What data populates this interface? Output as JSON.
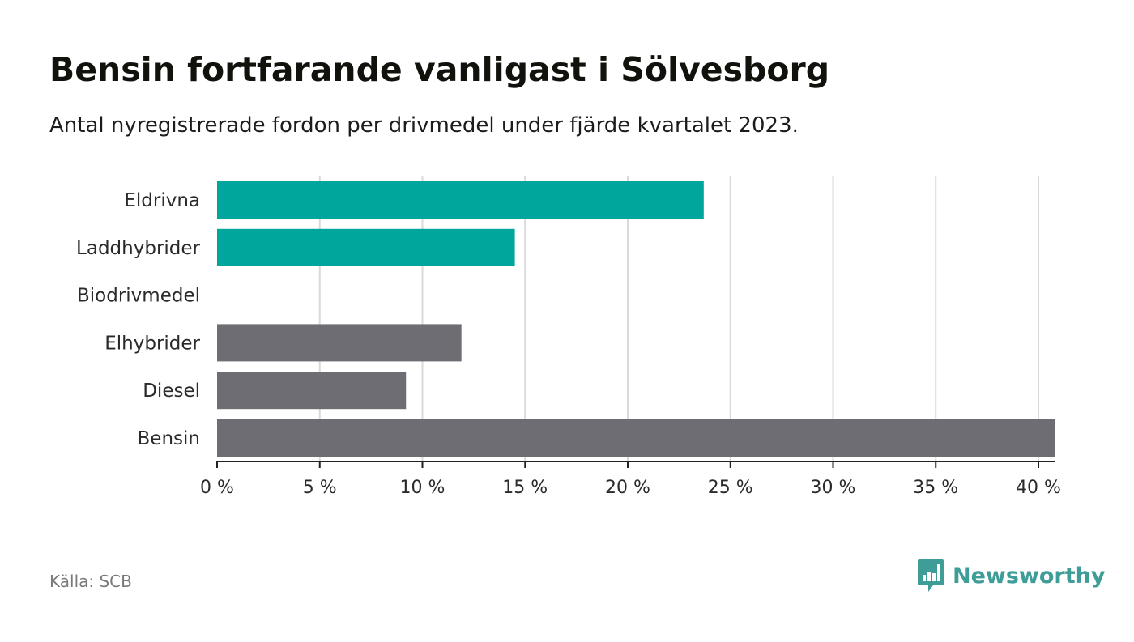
{
  "title": "Bensin fortfarande vanligast i Sölvesborg",
  "subtitle": "Antal nyregistrerade fordon per drivmedel under fjärde kvartalet 2023.",
  "source": "Källa: SCB",
  "brand": {
    "name": "Newsworthy",
    "icon": "newsworthy-logo-icon",
    "color": "#3e9e97"
  },
  "colors": {
    "highlight": "#00a59b",
    "base": "#6e6d73",
    "grid": "#d9d9d9",
    "axis": "#222222"
  },
  "chart_data": {
    "type": "bar",
    "orientation": "horizontal",
    "title": "Bensin fortfarande vanligast i Sölvesborg",
    "xlabel": "",
    "ylabel": "",
    "xlim": [
      0,
      40.8
    ],
    "grid": true,
    "categories": [
      "Eldrivna",
      "Laddhybrider",
      "Biodrivmedel",
      "Elhybrider",
      "Diesel",
      "Bensin"
    ],
    "values": [
      23.7,
      14.5,
      0,
      11.9,
      9.2,
      40.8
    ],
    "highlight": [
      true,
      true,
      false,
      false,
      false,
      false
    ],
    "ticks": [
      0,
      5,
      10,
      15,
      20,
      25,
      30,
      35,
      40
    ],
    "tick_labels": [
      "0 %",
      "5 %",
      "10 %",
      "15 %",
      "20 %",
      "25 %",
      "30 %",
      "35 %",
      "40 %"
    ]
  }
}
